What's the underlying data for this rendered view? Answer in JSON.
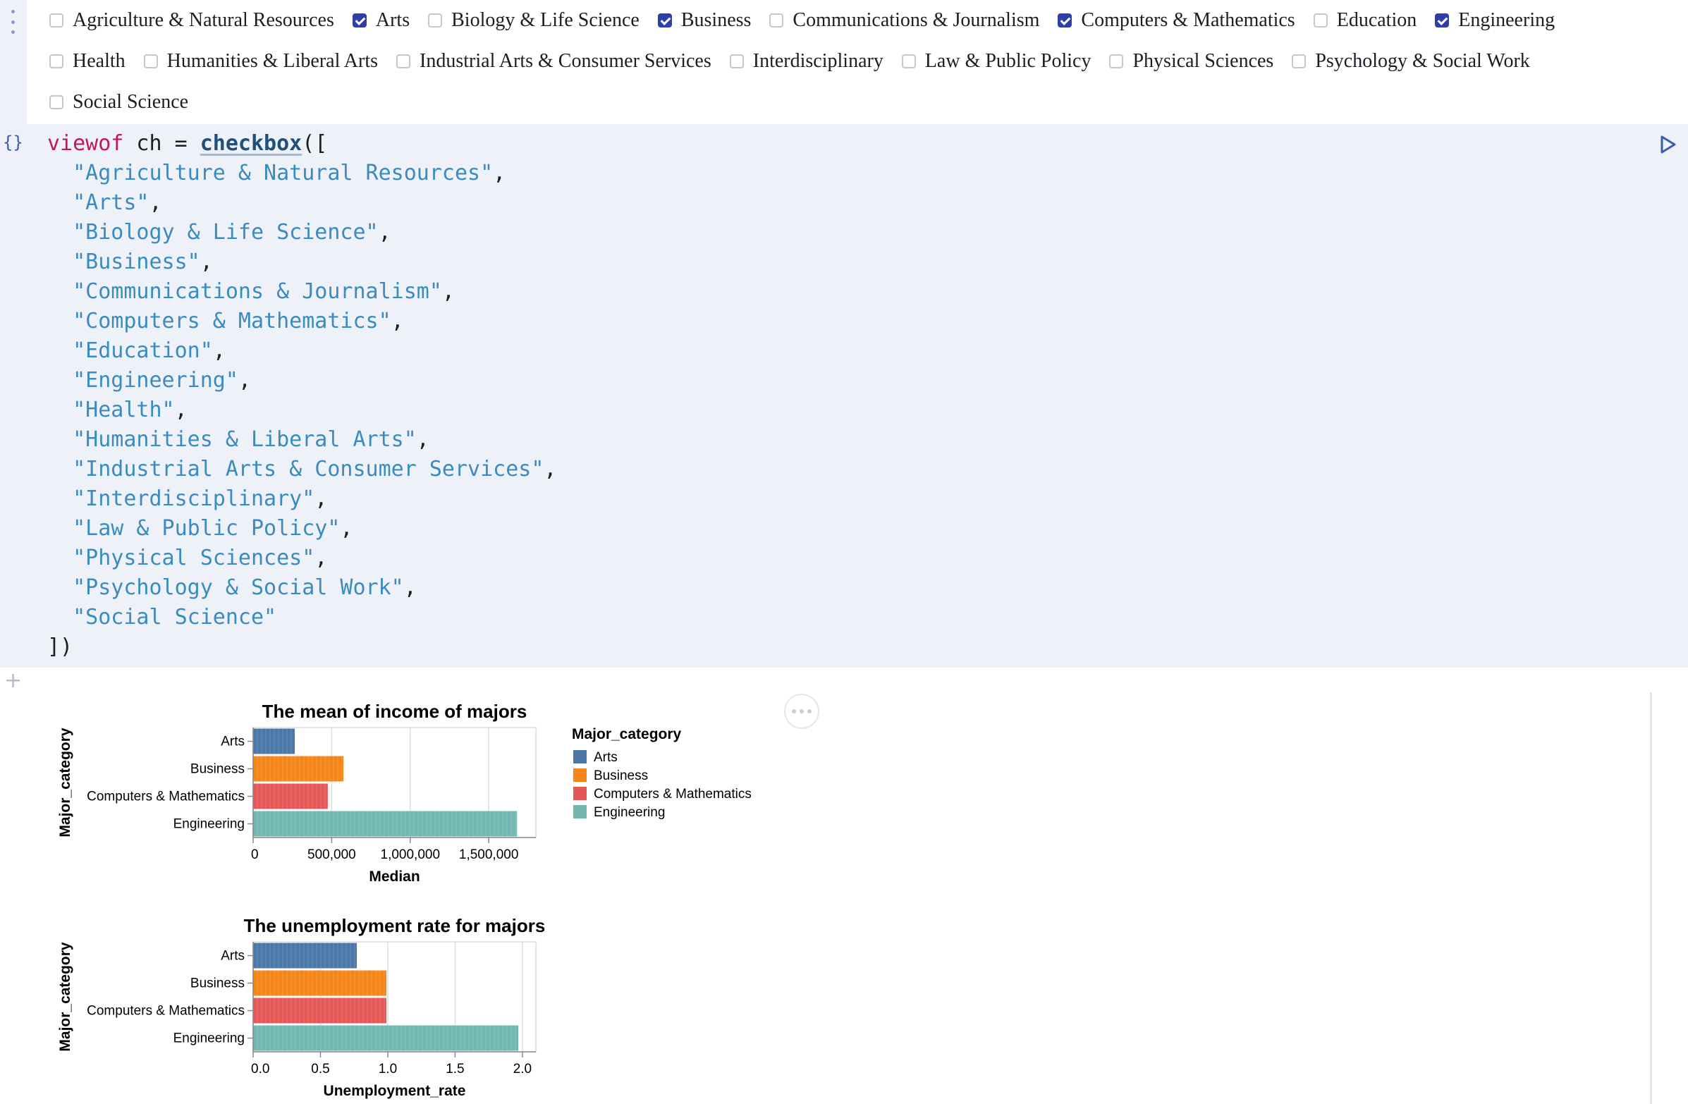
{
  "checkboxes": [
    {
      "label": "Agriculture & Natural Resources",
      "checked": false
    },
    {
      "label": "Arts",
      "checked": true
    },
    {
      "label": "Biology & Life Science",
      "checked": false
    },
    {
      "label": "Business",
      "checked": true
    },
    {
      "label": "Communications & Journalism",
      "checked": false
    },
    {
      "label": "Computers & Mathematics",
      "checked": true
    },
    {
      "label": "Education",
      "checked": false
    },
    {
      "label": "Engineering",
      "checked": true
    },
    {
      "label": "Health",
      "checked": false
    },
    {
      "label": "Humanities & Liberal Arts",
      "checked": false
    },
    {
      "label": "Industrial Arts & Consumer Services",
      "checked": false
    },
    {
      "label": "Interdisciplinary",
      "checked": false
    },
    {
      "label": "Law & Public Policy",
      "checked": false
    },
    {
      "label": "Physical Sciences",
      "checked": false
    },
    {
      "label": "Psychology & Social Work",
      "checked": false
    },
    {
      "label": "Social Science",
      "checked": false
    }
  ],
  "code": {
    "keyword": "viewof",
    "variable": " ch = ",
    "function": "checkbox",
    "open": "([",
    "strings": [
      "\"Agriculture & Natural Resources\",",
      "\"Arts\",",
      "\"Biology & Life Science\",",
      "\"Business\",",
      "\"Communications & Journalism\",",
      "\"Computers & Mathematics\",",
      "\"Education\",",
      "\"Engineering\",",
      "\"Health\",",
      "\"Humanities & Liberal Arts\",",
      "\"Industrial Arts & Consumer Services\",",
      "\"Interdisciplinary\",",
      "\"Law & Public Policy\",",
      "\"Physical Sciences\",",
      "\"Psychology & Social Work\",",
      "\"Social Science\""
    ],
    "close": "])",
    "cell_icon": "{}"
  },
  "icons": {
    "cell_menu": "vertical-dots-icon",
    "cell_type": "curly-braces-icon",
    "run": "play-icon",
    "add_cell": "plus-icon",
    "more": "ellipsis-icon"
  },
  "add_cell_glyph": "+",
  "legend": {
    "title": "Major_category",
    "entries": [
      {
        "label": "Arts",
        "color": "#4c78a8"
      },
      {
        "label": "Business",
        "color": "#f58518"
      },
      {
        "label": "Computers & Mathematics",
        "color": "#e45756"
      },
      {
        "label": "Engineering",
        "color": "#72b7b2"
      }
    ]
  },
  "chart_data": [
    {
      "type": "bar",
      "orientation": "horizontal",
      "title": "The mean of income of majors",
      "xlabel": "Median",
      "ylabel": "Major_category",
      "categories": [
        "Arts",
        "Business",
        "Computers & Mathematics",
        "Engineering"
      ],
      "values": [
        265000,
        575000,
        475000,
        1680000
      ],
      "xlim": [
        0,
        1800000
      ],
      "xticks": [
        0,
        500000,
        1000000,
        1500000
      ],
      "xtick_labels": [
        "0",
        "500,000",
        "1,000,000",
        "1,500,000"
      ],
      "colors": [
        "#4c78a8",
        "#f58518",
        "#e45756",
        "#72b7b2"
      ],
      "grid": true,
      "legend": "right"
    },
    {
      "type": "bar",
      "orientation": "horizontal",
      "title": "The unemployment rate for majors",
      "xlabel": "Unemployment_rate",
      "ylabel": "Major_category",
      "categories": [
        "Arts",
        "Business",
        "Computers & Mathematics",
        "Engineering"
      ],
      "values": [
        0.77,
        0.99,
        0.99,
        1.97
      ],
      "xlim": [
        0,
        2.1
      ],
      "xticks": [
        0,
        0.5,
        1.0,
        1.5,
        2.0
      ],
      "xtick_labels": [
        "0.0",
        "0.5",
        "1.0",
        "1.5",
        "2.0"
      ],
      "colors": [
        "#4c78a8",
        "#f58518",
        "#e45756",
        "#72b7b2"
      ],
      "grid": true
    }
  ]
}
